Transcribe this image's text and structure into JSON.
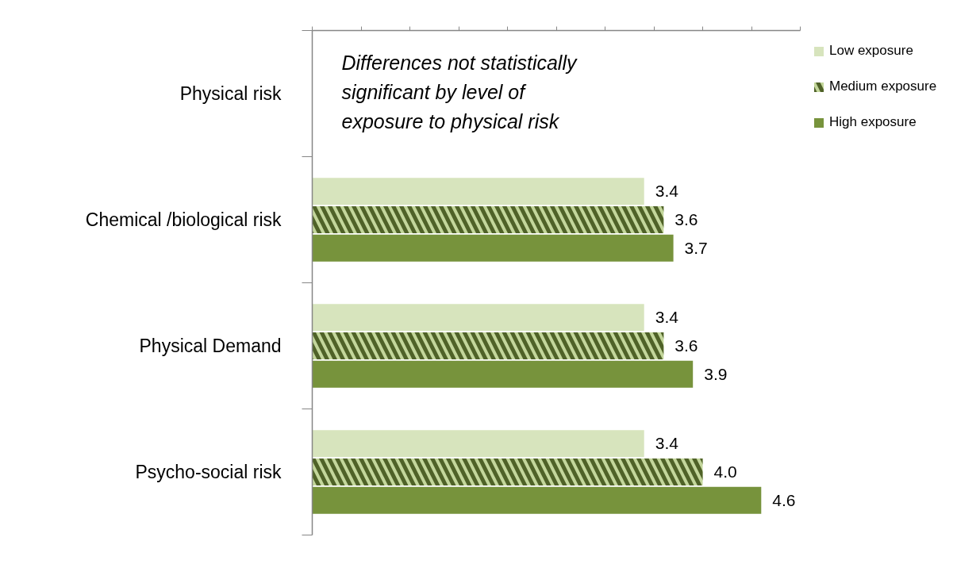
{
  "chart_data": {
    "type": "bar",
    "orientation": "horizontal",
    "categories": [
      "Physical risk",
      "Chemical /biological risk",
      "Physical Demand",
      "Psycho-social risk"
    ],
    "series": [
      {
        "name": "Low exposure",
        "color": "#d7e4bd",
        "values": [
          null,
          3.4,
          3.4,
          3.4
        ],
        "value_labels": [
          null,
          "3.4",
          "3.4",
          "3.4"
        ]
      },
      {
        "name": "Medium exposure",
        "color": "#c3d69b",
        "values": [
          null,
          3.6,
          3.6,
          4.0
        ],
        "value_labels": [
          null,
          "3.6",
          "3.6",
          "4.0"
        ]
      },
      {
        "name": "High exposure",
        "color": "#77933c",
        "values": [
          null,
          3.7,
          3.9,
          4.6
        ],
        "value_labels": [
          null,
          "3.7",
          "3.9",
          "4.6"
        ]
      }
    ],
    "xlim": [
      0,
      5
    ],
    "xticks": [
      {
        "value": 0,
        "label": null
      },
      {
        "value": 0.5,
        "label": null
      },
      {
        "value": 1,
        "label": null
      },
      {
        "value": 1.5,
        "label": null
      },
      {
        "value": 2,
        "label": null
      },
      {
        "value": 2.5,
        "label": null
      },
      {
        "value": 3,
        "label": null
      },
      {
        "value": 3.5,
        "label": null
      },
      {
        "value": 4,
        "label": null
      },
      {
        "value": 4.5,
        "label": null
      },
      {
        "value": 5,
        "label": null
      }
    ],
    "tick_labels": "y",
    "legend": "top right",
    "annotations": [
      "Differences not statistically significant by level of exposure to physical risk"
    ]
  }
}
